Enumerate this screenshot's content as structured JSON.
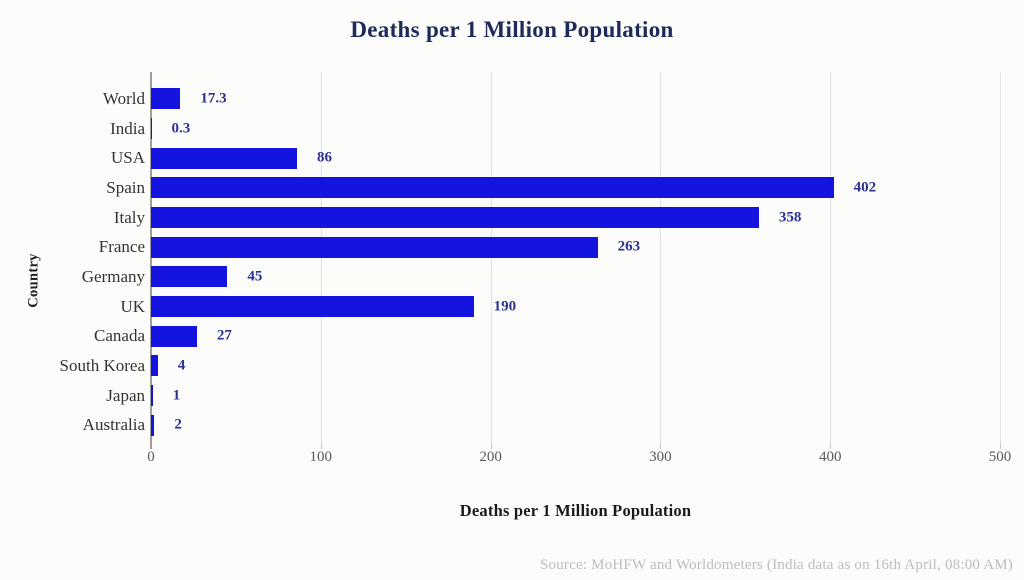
{
  "chart_data": {
    "type": "bar",
    "orientation": "horizontal",
    "title": "Deaths per 1 Million Population",
    "xlabel": "Deaths per 1 Million Population",
    "ylabel": "Country",
    "categories": [
      "World",
      "India",
      "USA",
      "Spain",
      "Italy",
      "France",
      "Germany",
      "UK",
      "Canada",
      "South Korea",
      "Japan",
      "Australia"
    ],
    "values": [
      17.3,
      0.3,
      86,
      402,
      358,
      263,
      45,
      190,
      27,
      4,
      1,
      2
    ],
    "value_labels": [
      "17.3",
      "0.3",
      "86",
      "402",
      "358",
      "263",
      "45",
      "190",
      "27",
      "4",
      "1",
      "2"
    ],
    "xlim": [
      0,
      500
    ],
    "xticks": [
      "0",
      "100",
      "200",
      "300",
      "400",
      "500"
    ],
    "grid": "vertical-only",
    "legend": "none",
    "bar_color": "#1513df",
    "value_label_color": "#2e3192",
    "title_color": "#1e2a5b"
  },
  "footer": {
    "source": "Source: MoHFW and Worldometers (India data as on 16th April, 08:00 AM)"
  }
}
